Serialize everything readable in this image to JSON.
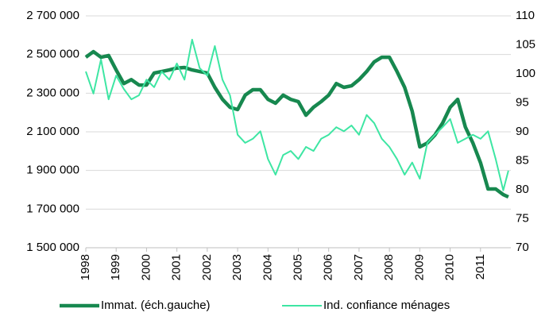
{
  "chart_data": {
    "type": "line",
    "x": [
      1998,
      1998.25,
      1998.5,
      1998.75,
      1999,
      1999.25,
      1999.5,
      1999.75,
      2000,
      2000.25,
      2000.5,
      2000.75,
      2001,
      2001.25,
      2001.5,
      2001.75,
      2002,
      2002.25,
      2002.5,
      2002.75,
      2003,
      2003.25,
      2003.5,
      2003.75,
      2004,
      2004.25,
      2004.5,
      2004.75,
      2005,
      2005.25,
      2005.5,
      2005.75,
      2006,
      2006.25,
      2006.5,
      2006.75,
      2007,
      2007.25,
      2007.5,
      2007.75,
      2008,
      2008.25,
      2008.5,
      2008.75,
      2009,
      2009.25,
      2009.5,
      2009.75,
      2010,
      2010.25,
      2010.5,
      2010.75,
      2011,
      2011.25,
      2011.5,
      2011.75,
      2011.92
    ],
    "series": [
      {
        "name": "Immat. (éch.gauche)",
        "color": "#17884f",
        "values": [
          2486000,
          2515000,
          2486000,
          2495000,
          2420000,
          2350000,
          2370000,
          2342000,
          2342000,
          2404000,
          2412000,
          2420000,
          2430000,
          2433000,
          2420000,
          2412000,
          2404000,
          2330000,
          2268000,
          2227000,
          2215000,
          2290000,
          2318000,
          2318000,
          2268000,
          2248000,
          2290000,
          2268000,
          2256000,
          2186000,
          2227000,
          2256000,
          2290000,
          2350000,
          2330000,
          2338000,
          2370000,
          2412000,
          2462000,
          2486000,
          2486000,
          2412000,
          2330000,
          2207000,
          2022000,
          2042000,
          2084000,
          2145000,
          2227000,
          2268000,
          2125000,
          2042000,
          1940000,
          1804000,
          1804000,
          1775000,
          1763000
        ]
      },
      {
        "name": "Ind. confiance ménages",
        "color": "#3ee6a3",
        "axis": "y2",
        "values": [
          100.4,
          96.6,
          102.5,
          95.6,
          99.7,
          97.4,
          95.6,
          96.3,
          99,
          97.7,
          100.4,
          99,
          101.8,
          99,
          105.9,
          101,
          99.7,
          104.8,
          99,
          96.3,
          89.5,
          88.1,
          88.8,
          90.1,
          85.3,
          82.6,
          86,
          86.7,
          85.3,
          87.4,
          86.7,
          88.8,
          89.5,
          90.8,
          90.1,
          91.1,
          89.5,
          92.9,
          91.5,
          88.8,
          87.4,
          85.3,
          82.6,
          84.7,
          81.9,
          88.1,
          89.5,
          90.8,
          92.2,
          88.1,
          88.8,
          89.5,
          88.8,
          90.1,
          85.3,
          79.9,
          83.3
        ]
      }
    ],
    "xlim": [
      1998,
      2012
    ],
    "xticks": [
      1998,
      1999,
      2000,
      2001,
      2002,
      2003,
      2004,
      2005,
      2006,
      2007,
      2008,
      2009,
      2010,
      2011
    ],
    "ylim": [
      1500000,
      2700000
    ],
    "yticks": [
      {
        "value": 1500000,
        "label": "1 500 000"
      },
      {
        "value": 1700000,
        "label": "1 700 000"
      },
      {
        "value": 1900000,
        "label": "1 900 000"
      },
      {
        "value": 2100000,
        "label": "2 100 000"
      },
      {
        "value": 2300000,
        "label": "2 300 000"
      },
      {
        "value": 2500000,
        "label": "2 500 000"
      },
      {
        "value": 2700000,
        "label": "2 700 000"
      }
    ],
    "y2lim": [
      70,
      110
    ],
    "y2ticks": [
      70,
      75,
      80,
      85,
      90,
      95,
      100,
      105,
      110
    ],
    "grid": true
  }
}
